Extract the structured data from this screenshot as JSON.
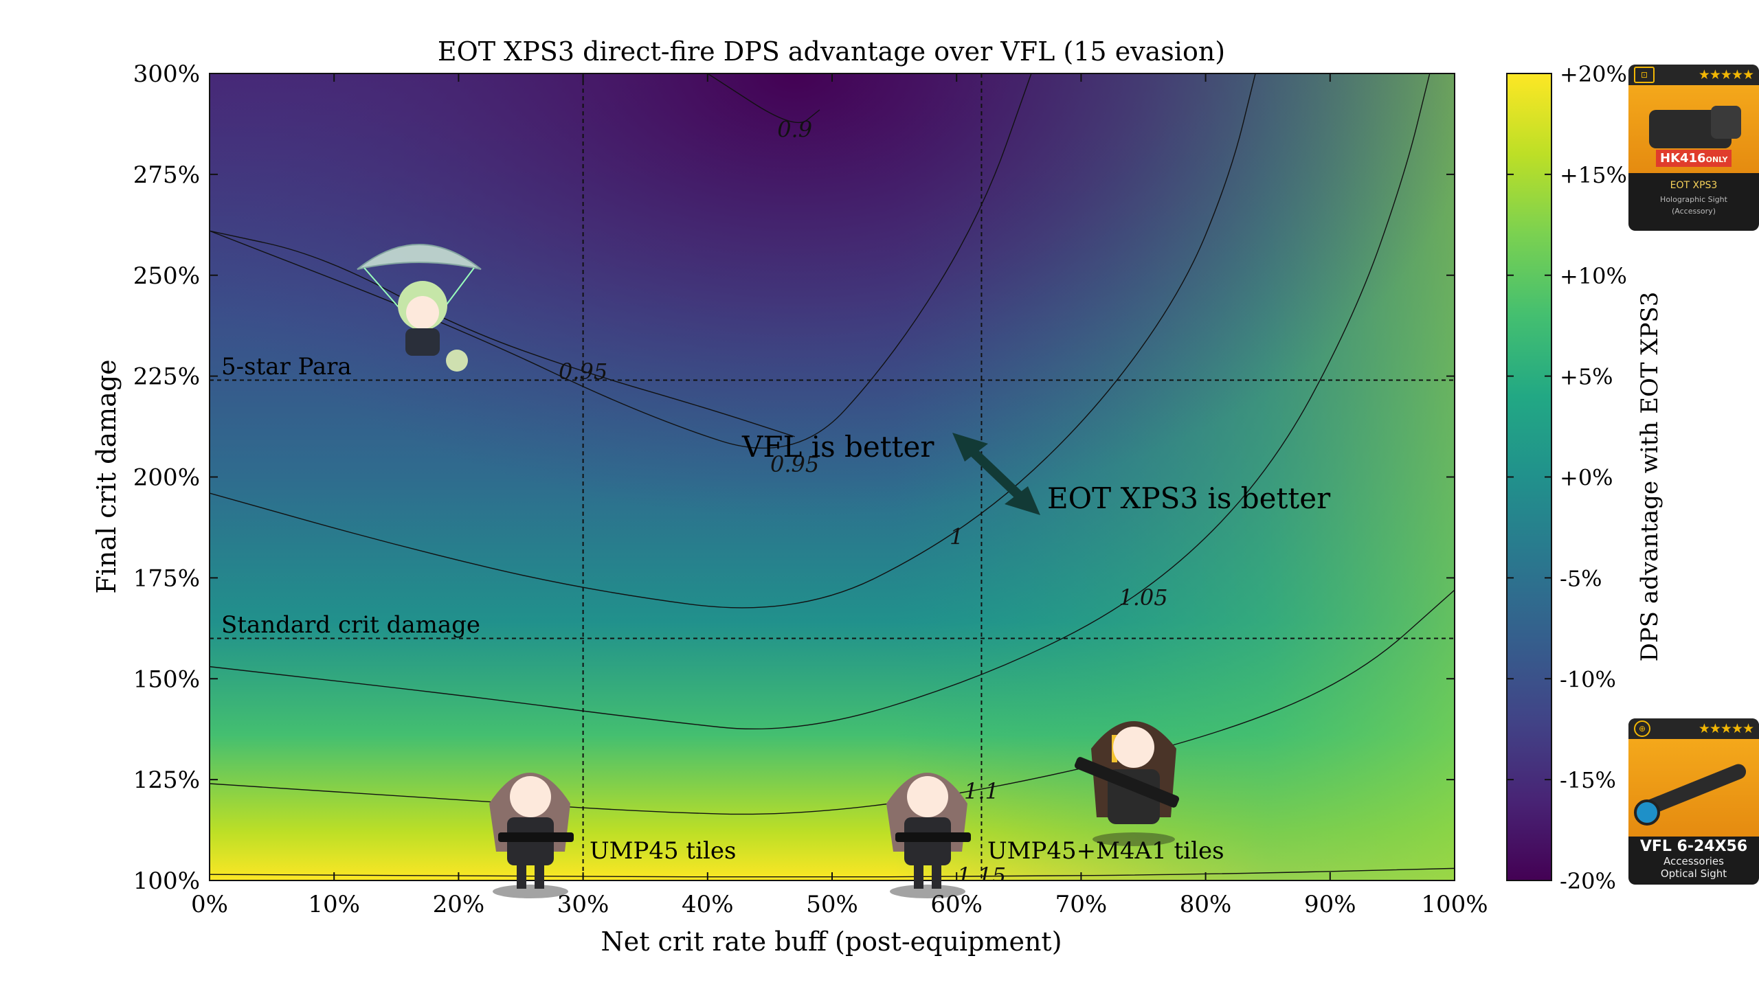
{
  "chart_data": {
    "type": "heatmap",
    "title": "EOT XPS3 direct-fire DPS advantage over VFL (15 evasion)",
    "xlabel": "Net crit rate buff (post-equipment)",
    "ylabel": "Final crit damage",
    "xlim": [
      0,
      100
    ],
    "ylim": [
      100,
      300
    ],
    "x_ticks": [
      "0%",
      "10%",
      "20%",
      "30%",
      "40%",
      "50%",
      "60%",
      "70%",
      "80%",
      "90%",
      "100%"
    ],
    "y_ticks": [
      "100%",
      "125%",
      "150%",
      "175%",
      "200%",
      "225%",
      "250%",
      "275%",
      "300%"
    ],
    "colorbar": {
      "label": "DPS advantage with EOT XPS3",
      "range": [
        -20,
        20
      ],
      "ticks": [
        "+20%",
        "+15%",
        "+10%",
        "+5%",
        "+0%",
        "-5%",
        "-10%",
        "-15%",
        "-20%"
      ],
      "colormap": [
        "#440154",
        "#482475",
        "#414487",
        "#355f8d",
        "#2a788e",
        "#21918c",
        "#22a884",
        "#44bf70",
        "#7ad151",
        "#bddf26",
        "#fde725"
      ]
    },
    "contours": [
      {
        "level": "0.9",
        "points": [
          [
            40,
            300
          ],
          [
            47,
            286
          ],
          [
            49,
            291
          ]
        ]
      },
      {
        "level": "0.95",
        "points": [
          [
            0,
            261
          ],
          [
            20,
            237
          ],
          [
            35,
            215
          ],
          [
            47,
            203
          ],
          [
            55,
            230
          ],
          [
            62,
            265
          ],
          [
            66,
            300
          ]
        ]
      },
      {
        "level": "0.95",
        "points": [
          [
            0,
            261
          ],
          [
            9,
            255
          ],
          [
            20,
            237
          ],
          [
            30,
            226
          ],
          [
            40,
            217
          ],
          [
            47,
            210
          ]
        ]
      },
      {
        "level": "1",
        "points": [
          [
            0,
            196
          ],
          [
            15,
            183
          ],
          [
            30,
            172
          ],
          [
            47,
            165
          ],
          [
            60,
            185
          ],
          [
            70,
            212
          ],
          [
            78,
            245
          ],
          [
            82,
            275
          ],
          [
            84,
            300
          ]
        ]
      },
      {
        "level": "1.05",
        "points": [
          [
            0,
            153
          ],
          [
            20,
            146
          ],
          [
            35,
            140
          ],
          [
            47,
            136
          ],
          [
            62,
            150
          ],
          [
            75,
            170
          ],
          [
            85,
            200
          ],
          [
            92,
            240
          ],
          [
            96,
            275
          ],
          [
            98,
            300
          ]
        ]
      },
      {
        "level": "1.1",
        "points": [
          [
            0,
            124
          ],
          [
            20,
            120
          ],
          [
            35,
            117
          ],
          [
            47,
            116
          ],
          [
            62,
            122
          ],
          [
            80,
            135
          ],
          [
            92,
            150
          ],
          [
            100,
            172
          ]
        ]
      },
      {
        "level": "1.15",
        "points": [
          [
            0,
            101.5
          ],
          [
            30,
            101
          ],
          [
            47,
            100.8
          ],
          [
            62,
            101
          ],
          [
            80,
            101.5
          ],
          [
            100,
            103
          ]
        ]
      }
    ],
    "reference_lines": [
      {
        "orientation": "horizontal",
        "value": 224,
        "label": "5-star Para"
      },
      {
        "orientation": "horizontal",
        "value": 160,
        "label": "Standard crit damage"
      },
      {
        "orientation": "vertical",
        "value": 30,
        "label": "UMP45 tiles"
      },
      {
        "orientation": "vertical",
        "value": 62,
        "label": "UMP45+M4A1 tiles"
      }
    ],
    "annotations": [
      {
        "text": "VFL is better"
      },
      {
        "text": "EOT XPS3 is better"
      }
    ],
    "grid": false
  },
  "cards": {
    "eot": {
      "restriction_main": "HK416",
      "restriction_tag": "ONLY",
      "name": "EOT XPS3",
      "type": "Holographic Sight",
      "category": "(Accessory)",
      "stars": "★★★★★"
    },
    "vfl": {
      "name": "VFL 6-24X56",
      "category": "Accessories",
      "type": "Optical Sight",
      "stars": "★★★★★"
    }
  },
  "colors": {
    "arrow": "#123a36",
    "contour": "#111111"
  }
}
